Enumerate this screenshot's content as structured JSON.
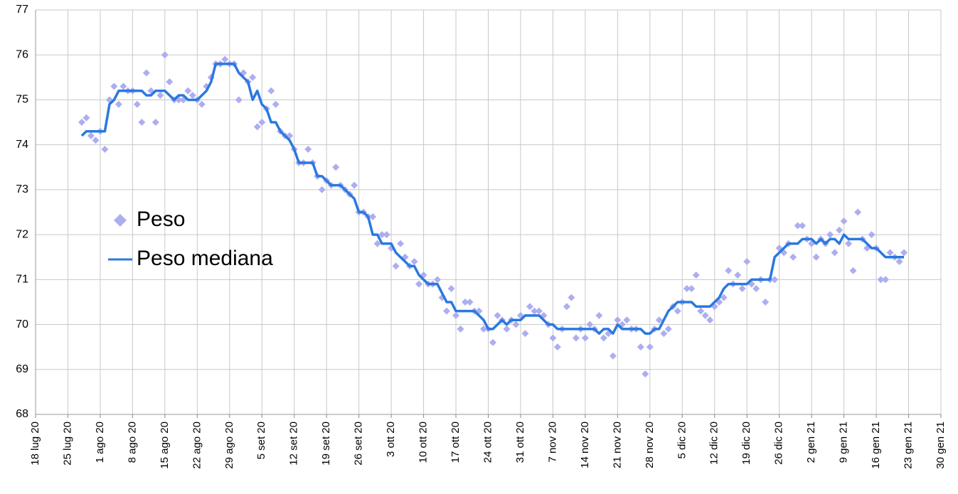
{
  "chart_data": {
    "type": "line",
    "x": [
      "2020-07-28",
      "2020-07-29",
      "2020-07-30",
      "2020-07-31",
      "2020-08-01",
      "2020-08-02",
      "2020-08-03",
      "2020-08-04",
      "2020-08-05",
      "2020-08-06",
      "2020-08-07",
      "2020-08-08",
      "2020-08-09",
      "2020-08-10",
      "2020-08-11",
      "2020-08-12",
      "2020-08-13",
      "2020-08-14",
      "2020-08-15",
      "2020-08-16",
      "2020-08-17",
      "2020-08-18",
      "2020-08-19",
      "2020-08-20",
      "2020-08-21",
      "2020-08-22",
      "2020-08-23",
      "2020-08-24",
      "2020-08-25",
      "2020-08-26",
      "2020-08-27",
      "2020-08-28",
      "2020-08-29",
      "2020-08-30",
      "2020-08-31",
      "2020-09-01",
      "2020-09-02",
      "2020-09-03",
      "2020-09-04",
      "2020-09-05",
      "2020-09-06",
      "2020-09-07",
      "2020-09-08",
      "2020-09-09",
      "2020-09-10",
      "2020-09-11",
      "2020-09-12",
      "2020-09-13",
      "2020-09-14",
      "2020-09-15",
      "2020-09-16",
      "2020-09-17",
      "2020-09-18",
      "2020-09-19",
      "2020-09-20",
      "2020-09-21",
      "2020-09-22",
      "2020-09-23",
      "2020-09-24",
      "2020-09-25",
      "2020-09-26",
      "2020-09-27",
      "2020-09-28",
      "2020-09-29",
      "2020-09-30",
      "2020-10-01",
      "2020-10-02",
      "2020-10-03",
      "2020-10-04",
      "2020-10-05",
      "2020-10-06",
      "2020-10-07",
      "2020-10-08",
      "2020-10-09",
      "2020-10-10",
      "2020-10-11",
      "2020-10-12",
      "2020-10-13",
      "2020-10-14",
      "2020-10-15",
      "2020-10-16",
      "2020-10-17",
      "2020-10-18",
      "2020-10-19",
      "2020-10-20",
      "2020-10-21",
      "2020-10-22",
      "2020-10-23",
      "2020-10-24",
      "2020-10-25",
      "2020-10-26",
      "2020-10-27",
      "2020-10-28",
      "2020-10-29",
      "2020-10-30",
      "2020-10-31",
      "2020-11-01",
      "2020-11-02",
      "2020-11-03",
      "2020-11-04",
      "2020-11-05",
      "2020-11-06",
      "2020-11-07",
      "2020-11-08",
      "2020-11-09",
      "2020-11-10",
      "2020-11-11",
      "2020-11-12",
      "2020-11-13",
      "2020-11-14",
      "2020-11-15",
      "2020-11-16",
      "2020-11-17",
      "2020-11-18",
      "2020-11-19",
      "2020-11-20",
      "2020-11-21",
      "2020-11-22",
      "2020-11-23",
      "2020-11-24",
      "2020-11-25",
      "2020-11-26",
      "2020-11-27",
      "2020-11-28",
      "2020-11-29",
      "2020-11-30",
      "2020-12-01",
      "2020-12-02",
      "2020-12-03",
      "2020-12-04",
      "2020-12-05",
      "2020-12-06",
      "2020-12-07",
      "2020-12-08",
      "2020-12-09",
      "2020-12-10",
      "2020-12-11",
      "2020-12-12",
      "2020-12-13",
      "2020-12-14",
      "2020-12-15",
      "2020-12-16",
      "2020-12-17",
      "2020-12-18",
      "2020-12-19",
      "2020-12-20",
      "2020-12-21",
      "2020-12-22",
      "2020-12-23",
      "2020-12-24",
      "2020-12-25",
      "2020-12-26",
      "2020-12-27",
      "2020-12-28",
      "2020-12-29",
      "2020-12-30",
      "2020-12-31",
      "2021-01-01",
      "2021-01-02",
      "2021-01-03",
      "2021-01-04",
      "2021-01-05",
      "2021-01-06",
      "2021-01-07",
      "2021-01-08",
      "2021-01-09",
      "2021-01-10",
      "2021-01-11",
      "2021-01-12",
      "2021-01-13",
      "2021-01-14",
      "2021-01-15",
      "2021-01-16",
      "2021-01-17",
      "2021-01-18",
      "2021-01-19",
      "2021-01-20",
      "2021-01-21",
      "2021-01-22"
    ],
    "series": [
      {
        "name": "Peso",
        "color": "#adaef0",
        "marker": "diamond",
        "values": [
          74.5,
          74.6,
          74.2,
          74.1,
          74.3,
          73.9,
          75.0,
          75.3,
          74.9,
          75.3,
          75.2,
          75.2,
          74.9,
          74.5,
          75.6,
          75.2,
          74.5,
          75.1,
          76.0,
          75.4,
          75.0,
          75.0,
          75.0,
          75.2,
          75.1,
          75.0,
          74.9,
          75.3,
          75.5,
          75.8,
          75.8,
          75.9,
          75.8,
          75.8,
          75.0,
          75.6,
          75.4,
          75.5,
          74.4,
          74.5,
          74.8,
          75.2,
          74.9,
          74.3,
          74.2,
          74.2,
          73.9,
          73.6,
          73.6,
          73.9,
          73.6,
          73.3,
          73.0,
          73.2,
          73.1,
          73.5,
          73.1,
          73.0,
          72.9,
          73.1,
          72.5,
          72.5,
          72.4,
          72.4,
          71.8,
          72.0,
          72.0,
          71.7,
          71.3,
          71.8,
          71.5,
          71.3,
          71.4,
          70.9,
          71.1,
          70.9,
          70.9,
          71.0,
          70.6,
          70.3,
          70.8,
          70.2,
          69.9,
          70.5,
          70.5,
          70.3,
          70.3,
          69.9,
          69.9,
          69.6,
          70.2,
          70.1,
          69.9,
          70.1,
          70.0,
          70.2,
          69.8,
          70.4,
          70.3,
          70.3,
          70.2,
          70.0,
          69.7,
          69.5,
          69.9,
          70.4,
          70.6,
          69.7,
          69.9,
          69.7,
          70.0,
          69.9,
          70.2,
          69.7,
          69.8,
          69.3,
          70.1,
          70.0,
          70.1,
          69.9,
          69.9,
          69.5,
          68.9,
          69.5,
          69.9,
          70.1,
          69.8,
          69.9,
          70.4,
          70.3,
          70.5,
          70.8,
          70.8,
          71.1,
          70.3,
          70.2,
          70.1,
          70.4,
          70.5,
          70.6,
          71.2,
          70.9,
          71.1,
          70.8,
          71.4,
          70.9,
          70.8,
          71.0,
          70.5,
          71.0,
          71.0,
          71.7,
          71.6,
          71.8,
          71.5,
          72.2,
          72.2,
          71.9,
          71.8,
          71.5,
          71.9,
          71.8,
          72.0,
          71.6,
          72.1,
          72.3,
          71.8,
          71.2,
          72.5,
          71.9,
          71.7,
          72.0,
          71.7,
          71.0,
          71.0,
          71.6,
          71.5,
          71.4,
          71.6
        ]
      },
      {
        "name": "Peso mediana",
        "color": "#2a78e0",
        "values": [
          74.2,
          74.3,
          74.3,
          74.3,
          74.3,
          74.3,
          74.9,
          75.0,
          75.2,
          75.2,
          75.2,
          75.2,
          75.2,
          75.2,
          75.1,
          75.1,
          75.2,
          75.2,
          75.2,
          75.1,
          75.0,
          75.1,
          75.1,
          75.0,
          75.0,
          75.0,
          75.1,
          75.2,
          75.4,
          75.8,
          75.8,
          75.8,
          75.8,
          75.8,
          75.6,
          75.5,
          75.4,
          75.0,
          75.2,
          74.9,
          74.8,
          74.5,
          74.5,
          74.3,
          74.2,
          74.1,
          73.9,
          73.6,
          73.6,
          73.6,
          73.6,
          73.3,
          73.3,
          73.2,
          73.1,
          73.1,
          73.1,
          73.0,
          72.9,
          72.8,
          72.5,
          72.5,
          72.4,
          72.0,
          72.0,
          71.8,
          71.8,
          71.8,
          71.6,
          71.5,
          71.4,
          71.3,
          71.3,
          71.1,
          71.0,
          70.9,
          70.9,
          70.9,
          70.7,
          70.5,
          70.5,
          70.3,
          70.3,
          70.3,
          70.3,
          70.3,
          70.2,
          70.1,
          69.9,
          69.9,
          70.0,
          70.1,
          70.0,
          70.1,
          70.1,
          70.1,
          70.2,
          70.2,
          70.2,
          70.2,
          70.1,
          70.0,
          70.0,
          69.9,
          69.9,
          69.9,
          69.9,
          69.9,
          69.9,
          69.9,
          69.9,
          69.9,
          69.8,
          69.9,
          69.9,
          69.8,
          70.0,
          69.9,
          69.9,
          69.9,
          69.9,
          69.9,
          69.8,
          69.8,
          69.9,
          69.9,
          70.1,
          70.3,
          70.4,
          70.5,
          70.5,
          70.5,
          70.5,
          70.4,
          70.4,
          70.4,
          70.4,
          70.5,
          70.6,
          70.8,
          70.9,
          70.9,
          70.9,
          70.9,
          70.9,
          71.0,
          71.0,
          71.0,
          71.0,
          71.0,
          71.5,
          71.6,
          71.7,
          71.8,
          71.8,
          71.8,
          71.9,
          71.9,
          71.9,
          71.8,
          71.9,
          71.8,
          71.9,
          71.9,
          71.8,
          72.0,
          71.9,
          71.9,
          71.9,
          71.9,
          71.8,
          71.7,
          71.7,
          71.6,
          71.5,
          71.5,
          71.5,
          71.5,
          71.5
        ]
      }
    ],
    "xlim": [
      "2020-07-18",
      "2021-01-30"
    ],
    "xticks": [
      {
        "value": "2020-07-18",
        "label": "18 lug 20"
      },
      {
        "value": "2020-07-25",
        "label": "25 lug 20"
      },
      {
        "value": "2020-08-01",
        "label": "1 ago 20"
      },
      {
        "value": "2020-08-08",
        "label": "8 ago 20"
      },
      {
        "value": "2020-08-15",
        "label": "15 ago 20"
      },
      {
        "value": "2020-08-22",
        "label": "22 ago 20"
      },
      {
        "value": "2020-08-29",
        "label": "29 ago 20"
      },
      {
        "value": "2020-09-05",
        "label": "5 set 20"
      },
      {
        "value": "2020-09-12",
        "label": "12 set 20"
      },
      {
        "value": "2020-09-19",
        "label": "19 set 20"
      },
      {
        "value": "2020-09-26",
        "label": "26 set 20"
      },
      {
        "value": "2020-10-03",
        "label": "3 ott 20"
      },
      {
        "value": "2020-10-10",
        "label": "10 ott 20"
      },
      {
        "value": "2020-10-17",
        "label": "17 ott 20"
      },
      {
        "value": "2020-10-24",
        "label": "24 ott 20"
      },
      {
        "value": "2020-10-31",
        "label": "31 ott 20"
      },
      {
        "value": "2020-11-07",
        "label": "7 nov 20"
      },
      {
        "value": "2020-11-14",
        "label": "14 nov 20"
      },
      {
        "value": "2020-11-21",
        "label": "21 nov 20"
      },
      {
        "value": "2020-11-28",
        "label": "28 nov 20"
      },
      {
        "value": "2020-12-05",
        "label": "5 dic 20"
      },
      {
        "value": "2020-12-12",
        "label": "12 dic 20"
      },
      {
        "value": "2020-12-19",
        "label": "19 dic 20"
      },
      {
        "value": "2020-12-26",
        "label": "26 dic 20"
      },
      {
        "value": "2021-01-02",
        "label": "2 gen 21"
      },
      {
        "value": "2021-01-09",
        "label": "9 gen 21"
      },
      {
        "value": "2021-01-16",
        "label": "16 gen 21"
      },
      {
        "value": "2021-01-23",
        "label": "23 gen 21"
      },
      {
        "value": "2021-01-30",
        "label": "30 gen 21"
      }
    ],
    "ylim": [
      68,
      77
    ],
    "yticks": [
      68,
      69,
      70,
      71,
      72,
      73,
      74,
      75,
      76,
      77
    ],
    "grid": true,
    "legend": "left"
  }
}
